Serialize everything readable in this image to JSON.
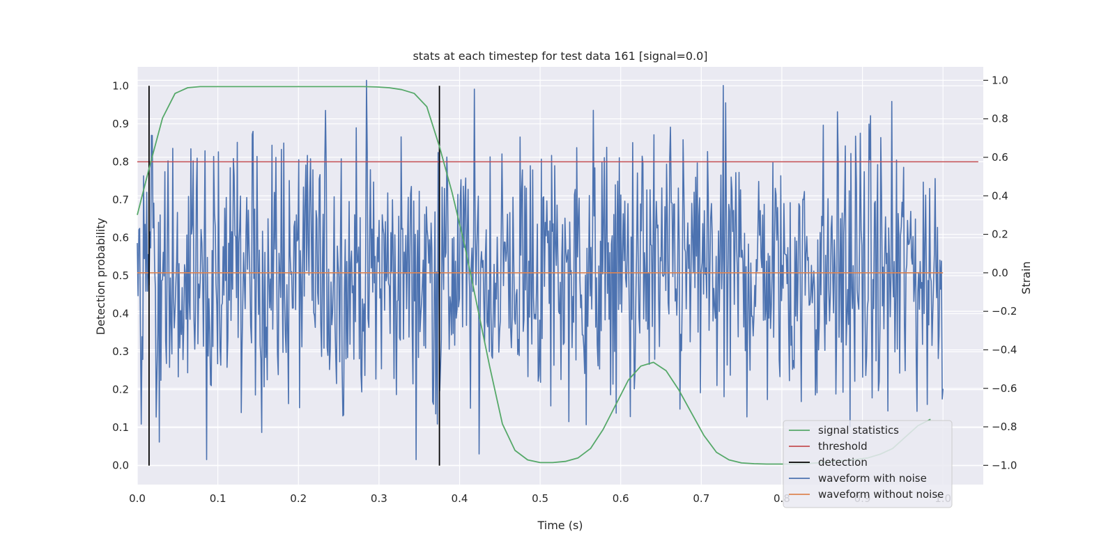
{
  "colors": {
    "plot_background": "#eaeaf2",
    "grid": "#ffffff",
    "signal_statistics": "#55a868",
    "threshold": "#c44e52",
    "detection": "#000000",
    "waveform_with_noise": "#4c72b0",
    "waveform_without_noise": "#dd8452"
  },
  "chart_data": {
    "type": "line",
    "title": "stats at each timestep for test data 161 [signal=0.0]",
    "xlabel": "Time (s)",
    "ylabel_left": "Detection probability",
    "ylabel_right": "Strain",
    "xlim": [
      0.0,
      1.05
    ],
    "ylim_left": [
      -0.05,
      1.05
    ],
    "ylim_right": [
      -1.1,
      1.07
    ],
    "x_ticks": [
      "0.0",
      "0.1",
      "0.2",
      "0.3",
      "0.4",
      "0.5",
      "0.6",
      "0.7",
      "0.8",
      "0.9",
      "1.0"
    ],
    "y_ticks_left": [
      "0.0",
      "0.1",
      "0.2",
      "0.3",
      "0.4",
      "0.5",
      "0.6",
      "0.7",
      "0.8",
      "0.9",
      "1.0"
    ],
    "y_ticks_right": [
      "−1.0",
      "−0.8",
      "−0.6",
      "−0.4",
      "−0.2",
      "0.0",
      "0.2",
      "0.4",
      "0.6",
      "0.8",
      "1.0"
    ],
    "grid": true,
    "legend_position": "lower-right",
    "legend": [
      {
        "label": "signal statistics",
        "series": "signal_statistics"
      },
      {
        "label": "threshold",
        "series": "threshold"
      },
      {
        "label": "detection",
        "series": "detection"
      },
      {
        "label": "waveform with noise",
        "series": "waveform_with_noise"
      },
      {
        "label": "waveform without noise",
        "series": "waveform_without_noise"
      }
    ],
    "signal_statistics": {
      "axis": "left",
      "x": [
        0.0,
        0.0156,
        0.0313,
        0.0469,
        0.0625,
        0.0781,
        0.0938,
        0.1094,
        0.125,
        0.1406,
        0.1563,
        0.1719,
        0.1875,
        0.2031,
        0.2188,
        0.2344,
        0.25,
        0.2656,
        0.2813,
        0.2969,
        0.3125,
        0.3281,
        0.3438,
        0.3594,
        0.375,
        0.3906,
        0.4063,
        0.4219,
        0.4375,
        0.4531,
        0.4688,
        0.4844,
        0.5,
        0.5156,
        0.5313,
        0.5469,
        0.5625,
        0.5781,
        0.5938,
        0.6094,
        0.625,
        0.6406,
        0.6563,
        0.6719,
        0.6875,
        0.7031,
        0.7188,
        0.7344,
        0.75,
        0.7656,
        0.7813,
        0.7969,
        0.8125,
        0.8281,
        0.8438,
        0.8594,
        0.875,
        0.8906,
        0.9063,
        0.9219,
        0.9375,
        0.9531,
        0.9688,
        0.9844
      ],
      "y": [
        0.66,
        0.79,
        0.915,
        0.98,
        0.995,
        0.998,
        0.998,
        0.998,
        0.998,
        0.998,
        0.998,
        0.998,
        0.998,
        0.998,
        0.998,
        0.998,
        0.998,
        0.998,
        0.998,
        0.997,
        0.995,
        0.99,
        0.98,
        0.945,
        0.84,
        0.72,
        0.58,
        0.42,
        0.26,
        0.11,
        0.04,
        0.015,
        0.008,
        0.008,
        0.011,
        0.02,
        0.045,
        0.095,
        0.16,
        0.225,
        0.262,
        0.272,
        0.25,
        0.2,
        0.14,
        0.08,
        0.035,
        0.015,
        0.007,
        0.005,
        0.004,
        0.004,
        0.004,
        0.005,
        0.007,
        0.01,
        0.013,
        0.016,
        0.02,
        0.03,
        0.045,
        0.075,
        0.105,
        0.122
      ]
    },
    "threshold": {
      "axis": "left",
      "y": 0.8,
      "x_range": [
        0.0,
        1.0438
      ]
    },
    "detection": {
      "axis": "left",
      "x": [
        0.0146,
        0.375
      ],
      "y_range": [
        0.0,
        1.0
      ]
    },
    "waveform_without_noise": {
      "axis": "right",
      "x_range": [
        0.0,
        1.0
      ],
      "y": 0.0
    },
    "waveform_with_noise": {
      "axis": "right",
      "x_range": [
        0.0,
        1.0
      ],
      "samples": 1024,
      "min": -0.97,
      "max": 1.0
    }
  }
}
